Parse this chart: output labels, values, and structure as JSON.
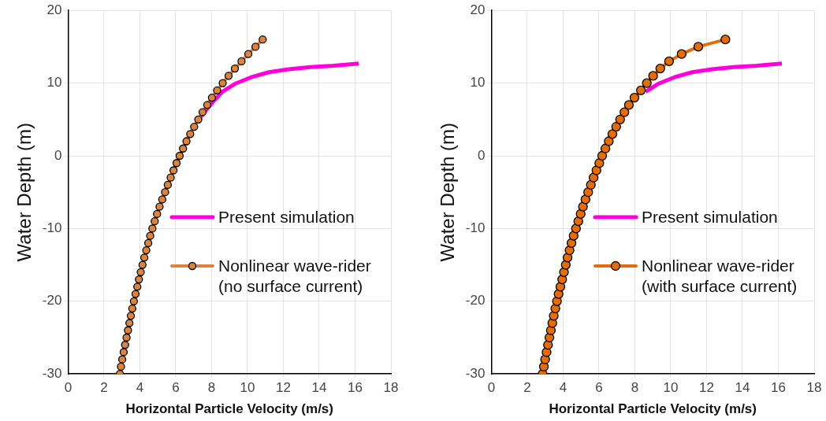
{
  "chart_data": [
    {
      "type": "line",
      "xlabel": "Horizontal Particle Velocity (m/s)",
      "ylabel": "Water Depth (m)",
      "xlim": [
        0,
        18
      ],
      "xticks": [
        0,
        2,
        4,
        6,
        8,
        10,
        12,
        14,
        16,
        18
      ],
      "ylim": [
        -30,
        20
      ],
      "yticks": [
        -30,
        -20,
        -10,
        0,
        10,
        20
      ],
      "grid": true,
      "legend": "right",
      "series": [
        {
          "name": "Present simulation",
          "color": "#ff00dd",
          "marker": "none",
          "x": [
            7.26,
            7.6,
            8.1,
            8.6,
            9.3,
            10.2,
            11.2,
            12.3,
            13.5,
            14.8,
            16.2
          ],
          "values": [
            5,
            6,
            7.5,
            8.8,
            9.9,
            10.8,
            11.5,
            11.9,
            12.2,
            12.4,
            12.7
          ]
        },
        {
          "name": "Nonlinear wave-rider (no surface current)",
          "color": "#db8440",
          "marker": "circle",
          "x": [
            2.89,
            2.95,
            3.02,
            3.1,
            3.18,
            3.26,
            3.34,
            3.42,
            3.5,
            3.58,
            3.67,
            3.76,
            3.86,
            3.95,
            4.05,
            4.15,
            4.25,
            4.36,
            4.47,
            4.58,
            4.7,
            4.83,
            4.96,
            5.1,
            5.25,
            5.41,
            5.56,
            5.72,
            5.88,
            6.05,
            6.22,
            6.41,
            6.6,
            6.81,
            7.03,
            7.26,
            7.5,
            7.76,
            8.02,
            8.31,
            8.62,
            8.95,
            9.3,
            9.67,
            10.05,
            10.45,
            10.85
          ],
          "values": [
            -30,
            -29,
            -28,
            -27,
            -26,
            -25,
            -24,
            -23,
            -22,
            -21,
            -20,
            -19,
            -18,
            -17,
            -16,
            -15,
            -14,
            -13,
            -12,
            -11,
            -10,
            -9,
            -8,
            -7,
            -6,
            -5,
            -4,
            -3,
            -2,
            -1,
            0,
            1,
            2,
            3,
            4,
            5,
            6,
            7,
            8,
            9,
            10,
            11,
            12,
            13,
            14,
            15,
            16
          ]
        }
      ]
    },
    {
      "type": "line",
      "xlabel": "Horizontal Particle Velocity (m/s)",
      "ylabel": "Water Depth (m)",
      "xlim": [
        0,
        18
      ],
      "xticks": [
        0,
        2,
        4,
        6,
        8,
        10,
        12,
        14,
        16,
        18
      ],
      "ylim": [
        -30,
        20
      ],
      "yticks": [
        -30,
        -20,
        -10,
        0,
        10,
        20
      ],
      "grid": true,
      "legend": "right",
      "series": [
        {
          "name": "Present simulation",
          "color": "#ff00dd",
          "marker": "none",
          "x": [
            8.6,
            9.3,
            10.2,
            11.2,
            12.3,
            13.5,
            14.8,
            16.2
          ],
          "values": [
            8.8,
            9.9,
            10.8,
            11.5,
            11.9,
            12.2,
            12.4,
            12.7
          ]
        },
        {
          "name": "Nonlinear wave-rider (with surface current)",
          "color": "#e46c0a",
          "marker": "circle",
          "x": [
            2.86,
            2.93,
            3.0,
            3.08,
            3.16,
            3.24,
            3.32,
            3.4,
            3.48,
            3.57,
            3.66,
            3.75,
            3.85,
            3.95,
            4.05,
            4.15,
            4.25,
            4.36,
            4.47,
            4.59,
            4.72,
            4.85,
            4.98,
            5.11,
            5.25,
            5.4,
            5.55,
            5.7,
            5.86,
            6.02,
            6.18,
            6.36,
            6.55,
            6.75,
            6.96,
            7.18,
            7.42,
            7.67,
            7.98,
            8.34,
            8.67,
            9.02,
            9.42,
            9.91,
            10.61,
            11.54,
            13.05
          ],
          "values": [
            -30,
            -29,
            -28,
            -27,
            -26,
            -25,
            -24,
            -23,
            -22,
            -21,
            -20,
            -19,
            -18,
            -17,
            -16,
            -15,
            -14,
            -13,
            -12,
            -11,
            -10,
            -9,
            -8,
            -7,
            -6,
            -5,
            -4,
            -3,
            -2,
            -1,
            0,
            1,
            2,
            3,
            4,
            5,
            6,
            7,
            8,
            9,
            10,
            11,
            12,
            13,
            14,
            15,
            16
          ]
        }
      ]
    }
  ]
}
